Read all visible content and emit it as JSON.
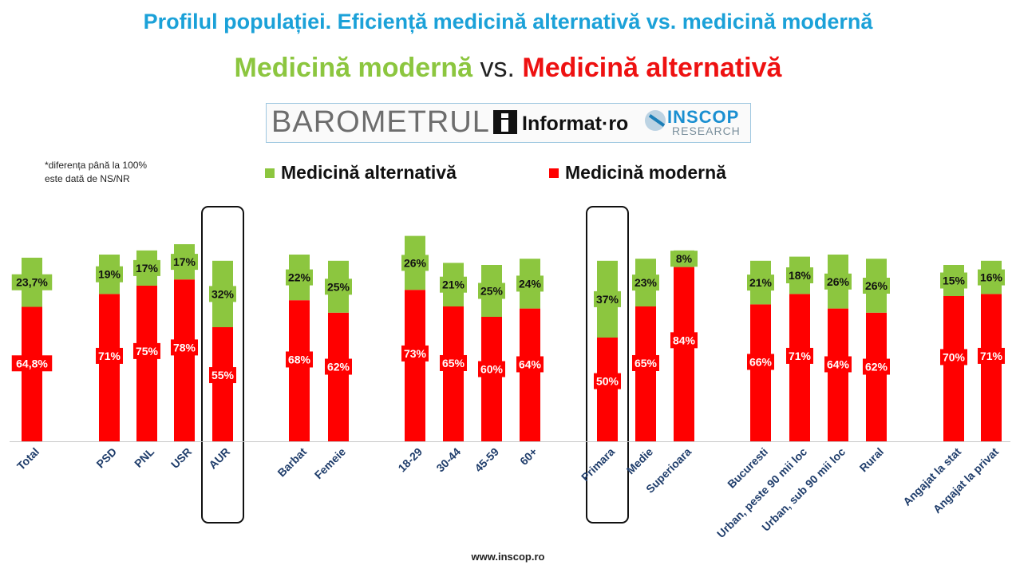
{
  "header": {
    "title": "Profilul populației. Eficiență medicină alternativă vs. medicină modernă",
    "subtitle_part1": "Medicină modernă",
    "subtitle_vs": "vs.",
    "subtitle_part2": "Medicină alternativă"
  },
  "logos": {
    "barometrul": "BAROMETRUL",
    "informat": "Informat·ro",
    "inscop": "INSCOP",
    "research": "RESEARCH"
  },
  "note": "*diferența până la 100%\neste dată de NS/NR",
  "footer": "www.inscop.ro",
  "colors": {
    "alternative": "#8cc63f",
    "modern": "#ff0000",
    "title": "#1ba1d8",
    "axis_label": "#1f3d6b"
  },
  "chart_data": {
    "type": "bar",
    "stacked": true,
    "legend": [
      {
        "key": "alternative",
        "label": "Medicină alternativă"
      },
      {
        "key": "modern",
        "label": "Medicină modernă"
      }
    ],
    "ylim": [
      0,
      100
    ],
    "categories": [
      "Total",
      "PSD",
      "PNL",
      "USR",
      "AUR",
      "Barbat",
      "Femeie",
      "18-29",
      "30-44",
      "45-59",
      "60+",
      "Primara",
      "Medie",
      "Superioara",
      "Bucuresti",
      "Urban, peste 90 mii loc",
      "Urban, sub 90 mii loc",
      "Rural",
      "Angajat la stat",
      "Angajat la privat"
    ],
    "series": [
      {
        "name": "Medicină modernă",
        "key": "modern",
        "values": [
          64.8,
          71,
          75,
          78,
          55,
          68,
          62,
          73,
          65,
          60,
          64,
          50,
          65,
          84,
          66,
          71,
          64,
          62,
          70,
          71
        ],
        "labels": [
          "64,8%",
          "71%",
          "75%",
          "78%",
          "55%",
          "68%",
          "62%",
          "73%",
          "65%",
          "60%",
          "64%",
          "50%",
          "65%",
          "84%",
          "66%",
          "71%",
          "64%",
          "62%",
          "70%",
          "71%"
        ]
      },
      {
        "name": "Medicină alternativă",
        "key": "alternative",
        "values": [
          23.7,
          19,
          17,
          17,
          32,
          22,
          25,
          26,
          21,
          25,
          24,
          37,
          23,
          8,
          21,
          18,
          26,
          26,
          15,
          16
        ],
        "labels": [
          "23,7%",
          "19%",
          "17%",
          "17%",
          "32%",
          "22%",
          "25%",
          "26%",
          "21%",
          "25%",
          "24%",
          "37%",
          "23%",
          "8%",
          "21%",
          "18%",
          "26%",
          "26%",
          "15%",
          "16%"
        ]
      }
    ],
    "highlighted": [
      "AUR",
      "Primara"
    ]
  }
}
